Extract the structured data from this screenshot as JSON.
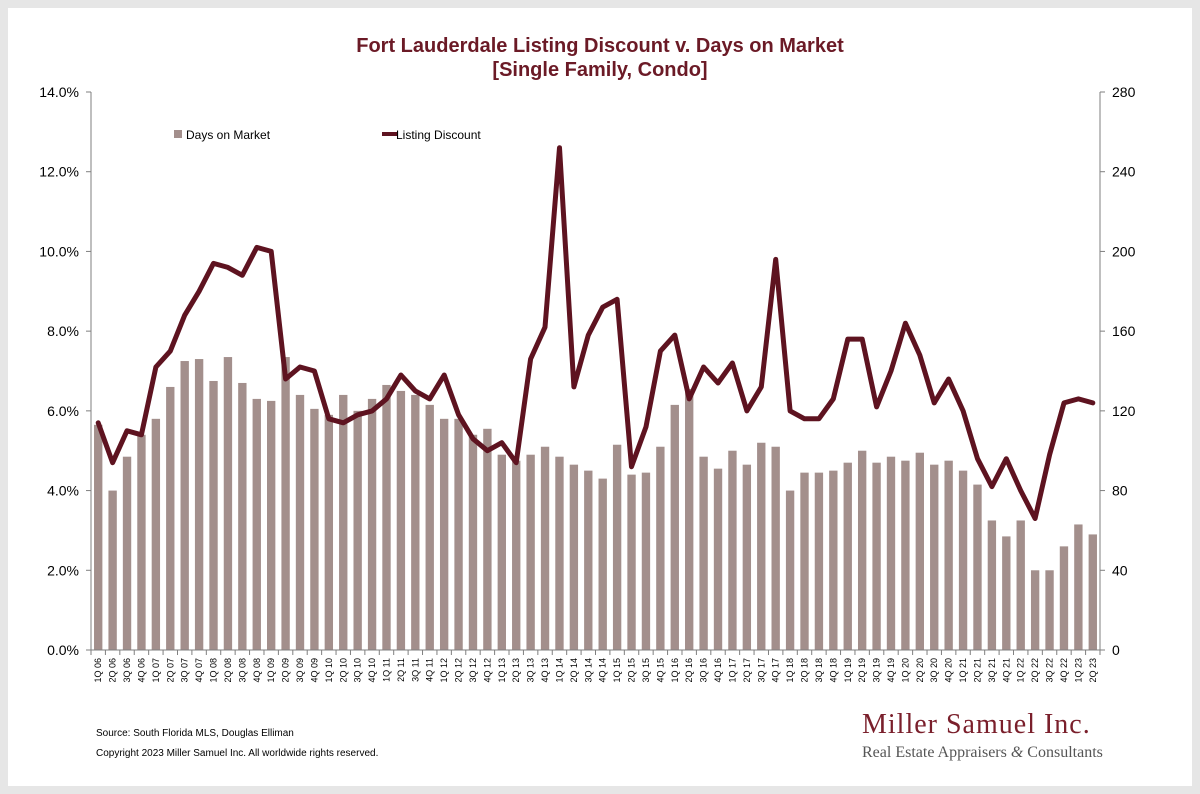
{
  "title_line1": "Fort Lauderdale Listing Discount v. Days on Market",
  "title_line2": "[Single Family, Condo]",
  "source": "Source: South Florida MLS, Douglas Elliman",
  "copyright": "Copyright 2023 Miller Samuel Inc.  All worldwide rights reserved.",
  "logo": {
    "name": "Miller Samuel Inc.",
    "tagline_part1": "Real Estate Appraisers",
    "tagline_amp": "&",
    "tagline_part2": "Consultants"
  },
  "colors": {
    "bar": "#a38f8c",
    "line": "#5e1320",
    "title": "#6b1a26",
    "axis": "#7f7f7f"
  },
  "chart_data": {
    "type": "bar",
    "title": "Fort Lauderdale Listing Discount v. Days on Market [Single Family, Condo]",
    "legend_position": "top-left",
    "grid": false,
    "y_left": {
      "ylim": [
        0,
        14
      ],
      "ticks": [
        "0.0%",
        "2.0%",
        "4.0%",
        "6.0%",
        "8.0%",
        "10.0%",
        "12.0%",
        "14.0%"
      ],
      "tick_values": [
        0,
        2,
        4,
        6,
        8,
        10,
        12,
        14
      ]
    },
    "y_right": {
      "ylim": [
        0,
        280
      ],
      "ticks": [
        "0",
        "40",
        "80",
        "120",
        "160",
        "200",
        "240",
        "280"
      ],
      "tick_values": [
        0,
        40,
        80,
        120,
        160,
        200,
        240,
        280
      ]
    },
    "categories": [
      "1Q 06",
      "2Q 06",
      "3Q 06",
      "4Q 06",
      "1Q 07",
      "2Q 07",
      "3Q 07",
      "4Q 07",
      "1Q 08",
      "2Q 08",
      "3Q 08",
      "4Q 08",
      "1Q 09",
      "2Q 09",
      "3Q 09",
      "4Q 09",
      "1Q 10",
      "2Q 10",
      "3Q 10",
      "4Q 10",
      "1Q 11",
      "2Q 11",
      "3Q 11",
      "4Q 11",
      "1Q 12",
      "2Q 12",
      "3Q 12",
      "4Q 12",
      "1Q 13",
      "2Q 13",
      "3Q 13",
      "4Q 13",
      "1Q 14",
      "2Q 14",
      "3Q 14",
      "4Q 14",
      "1Q 15",
      "2Q 15",
      "3Q 15",
      "4Q 15",
      "1Q 16",
      "2Q 16",
      "3Q 16",
      "4Q 16",
      "1Q 17",
      "2Q 17",
      "3Q 17",
      "4Q 17",
      "1Q 18",
      "2Q 18",
      "3Q 18",
      "4Q 18",
      "1Q 19",
      "2Q 19",
      "3Q 19",
      "4Q 19",
      "1Q 20",
      "2Q 20",
      "3Q 20",
      "4Q 20",
      "1Q 21",
      "2Q 21",
      "3Q 21",
      "4Q 21",
      "1Q 22",
      "2Q 22",
      "3Q 22",
      "4Q 22",
      "1Q 23",
      "2Q 23"
    ],
    "series": [
      {
        "name": "Days on Market",
        "type": "bar",
        "axis": "right",
        "values": [
          113,
          80,
          97,
          108,
          116,
          132,
          145,
          146,
          135,
          147,
          134,
          126,
          125,
          147,
          128,
          121,
          118,
          128,
          120,
          126,
          133,
          130,
          128,
          123,
          116,
          116,
          108,
          111,
          98,
          95,
          98,
          102,
          97,
          93,
          90,
          86,
          103,
          88,
          89,
          102,
          123,
          131,
          97,
          91,
          100,
          93,
          104,
          102,
          80,
          89,
          89,
          90,
          94,
          100,
          94,
          97,
          95,
          99,
          93,
          95,
          90,
          83,
          65,
          57,
          65,
          40,
          40,
          52,
          63,
          58
        ]
      },
      {
        "name": "Listing Discount",
        "type": "line",
        "axis": "left",
        "values": [
          5.7,
          4.7,
          5.5,
          5.4,
          7.1,
          7.5,
          8.4,
          9.0,
          9.7,
          9.6,
          9.4,
          10.1,
          10.0,
          6.8,
          7.1,
          7.0,
          5.8,
          5.7,
          5.9,
          6.0,
          6.3,
          6.9,
          6.5,
          6.3,
          6.9,
          5.9,
          5.3,
          5.0,
          5.2,
          4.7,
          7.3,
          8.1,
          12.6,
          6.6,
          7.9,
          8.6,
          8.8,
          4.6,
          5.6,
          7.5,
          7.9,
          6.3,
          7.1,
          6.7,
          7.2,
          6.0,
          6.6,
          9.8,
          6.0,
          5.8,
          5.8,
          6.3,
          7.8,
          7.8,
          6.1,
          7.0,
          8.2,
          7.4,
          6.2,
          6.8,
          6.0,
          4.8,
          4.1,
          4.8,
          4.0,
          3.3,
          4.9,
          6.2,
          6.3,
          6.2
        ]
      }
    ]
  }
}
